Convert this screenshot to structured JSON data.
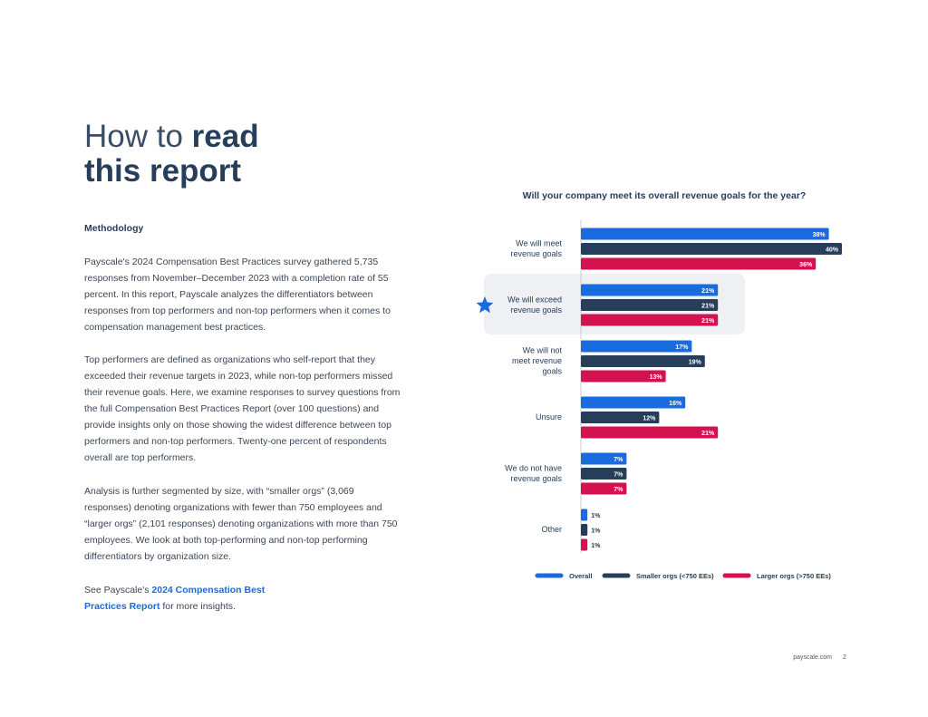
{
  "header": {
    "title_light": "How to",
    "title_bold_1": "read",
    "title_bold_2": "this report"
  },
  "methodology": {
    "heading": "Methodology",
    "paragraphs": [
      "Payscale's 2024 Compensation Best Practices survey gathered 5,735 responses from November–December 2023 with a completion rate of 55 percent. In this report, Payscale analyzes the differentiators between responses from top performers and non-top performers when it comes to compensation management best practices.",
      "Top performers are defined as organizations who self-report that they exceeded their revenue targets in 2023, while non-top performers missed their revenue goals. Here, we examine responses to survey questions from the full Compensation Best Practices Report (over 100 questions) and provide insights only on those showing the widest difference between top performers and non-top performers. Twenty-one percent of respondents overall are top performers.",
      "Analysis is further segmented by size, with “smaller orgs” (3,069 responses) denoting organizations with fewer than 750 employees and “larger orgs” (2,101 responses) denoting organizations with more than 750 employees. We look at both top-performing and non-top performing differentiators by organization size."
    ],
    "see_before": "See Payscale's",
    "see_link": "2024 Compensation Best Practices Report",
    "see_after": "for more insights."
  },
  "chart_data": {
    "type": "hbar",
    "title": "Will your company meet its overall revenue goals for the year?",
    "categories": [
      "We will meet revenue goals",
      "We will exceed revenue goals",
      "We will not meet revenue goals",
      "Unsure",
      "We do not have revenue goals",
      "Other"
    ],
    "series": [
      {
        "name": "Overall",
        "color": "#1a6be0",
        "values": [
          38,
          21,
          17,
          16,
          7,
          1
        ],
        "value_labels": [
          "38%",
          "21%",
          "17%",
          "16%",
          "7%",
          "1%"
        ]
      },
      {
        "name": "Smaller orgs (<750 EEs)",
        "color": "#273e5a",
        "values": [
          40,
          21,
          19,
          12,
          7,
          1
        ],
        "value_labels": [
          "40%",
          "21%",
          "19%",
          "12%",
          "7%",
          "1%"
        ]
      },
      {
        "name": "Larger orgs (>750 EEs)",
        "color": "#d4124f",
        "values": [
          36,
          21,
          13,
          21,
          7,
          1
        ],
        "value_labels": [
          "36%",
          "21%",
          "13%",
          "21%",
          "7%",
          "1%"
        ]
      }
    ]
  },
  "footer": {
    "site": "payscale.com",
    "page": "2"
  }
}
